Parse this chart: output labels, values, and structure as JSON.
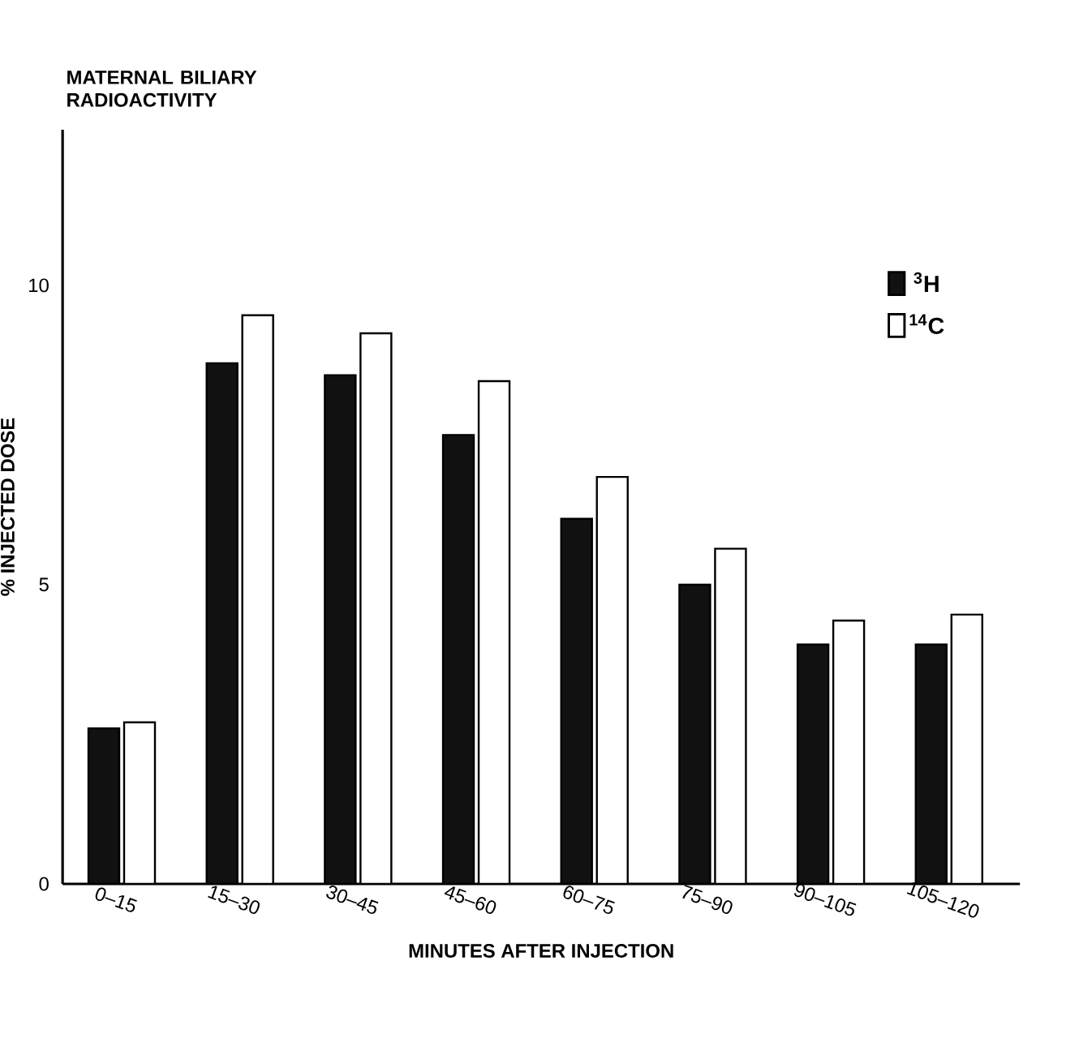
{
  "chart_data": {
    "type": "bar",
    "title": "MATERNAL BILIARY RADIOACTIVITY",
    "xlabel": "MINUTES AFTER INJECTION",
    "ylabel": "% INJECTED DOSE",
    "categories": [
      "0–15",
      "15–30",
      "30–45",
      "45–60",
      "60–75",
      "75–90",
      "90–105",
      "105–120"
    ],
    "series": [
      {
        "name": "$^{3}$H",
        "color": "#111111",
        "values": [
          2.6,
          8.7,
          8.5,
          7.5,
          6.1,
          5.0,
          4.0,
          4.0
        ]
      },
      {
        "name": "$^{14}$C",
        "color": "#ffffff",
        "values": [
          2.7,
          9.5,
          9.2,
          8.4,
          6.8,
          5.6,
          4.4,
          4.5
        ]
      }
    ],
    "ylim": [
      0,
      12.6
    ],
    "yticks": [
      0,
      5,
      10
    ],
    "grid": false,
    "legend": "top right"
  }
}
